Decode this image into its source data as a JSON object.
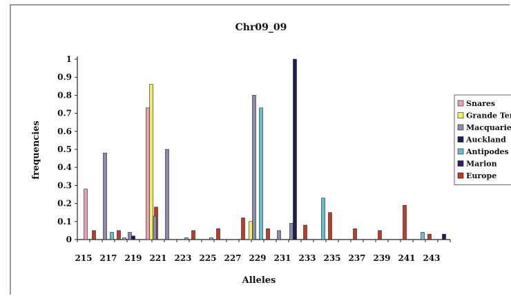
{
  "chart_data": {
    "type": "bar",
    "title": "Chr09_09",
    "xlabel": "Alleles",
    "ylabel": "frequencies",
    "ylim": [
      0,
      1
    ],
    "yticks": [
      "0",
      "0.1",
      "0.2",
      "0.3",
      "0.4",
      "0.5",
      "0.6",
      "0.7",
      "0.8",
      "0.9",
      "1"
    ],
    "categories": [
      "215",
      "216",
      "217",
      "218",
      "219",
      "220",
      "221",
      "222",
      "223",
      "224",
      "225",
      "226",
      "227",
      "228",
      "229",
      "230",
      "231",
      "232",
      "233",
      "234",
      "235",
      "236",
      "237",
      "238",
      "239",
      "240",
      "241",
      "242",
      "243",
      "244"
    ],
    "xtick_labels": [
      "215",
      "217",
      "219",
      "221",
      "223",
      "225",
      "227",
      "229",
      "231",
      "233",
      "235",
      "237",
      "239",
      "241",
      "243"
    ],
    "legend_position": "right",
    "series": [
      {
        "name": "Snares",
        "color": "#e8a0b0",
        "values": [
          0,
          0.28,
          0,
          0,
          0,
          0,
          0.73,
          0,
          0,
          0,
          0,
          0,
          0,
          0,
          0,
          0,
          0,
          0,
          0,
          0,
          0,
          0,
          0,
          0,
          0,
          0,
          0,
          0,
          0,
          0
        ]
      },
      {
        "name": "Grande Terre",
        "color": "#eeee60",
        "values": [
          0,
          0,
          0,
          0,
          0,
          0,
          0.86,
          0,
          0,
          0,
          0,
          0,
          0,
          0,
          0.1,
          0,
          0,
          0,
          0,
          0,
          0,
          0,
          0,
          0,
          0,
          0,
          0,
          0,
          0,
          0
        ]
      },
      {
        "name": "Macquarie",
        "color": "#8a8aaa",
        "values": [
          0,
          0,
          0.48,
          0,
          0.04,
          0,
          0.13,
          0.5,
          0,
          0,
          0,
          0,
          0,
          0,
          0.8,
          0,
          0.05,
          0.09,
          0,
          0,
          0,
          0,
          0,
          0,
          0,
          0,
          0,
          0,
          0,
          0
        ]
      },
      {
        "name": "Auckland",
        "color": "#1c1c5a",
        "values": [
          0,
          0,
          0,
          0,
          0.02,
          0,
          0,
          0,
          0,
          0,
          0,
          0,
          0,
          0,
          0,
          0,
          0,
          1.0,
          0,
          0,
          0,
          0,
          0,
          0,
          0,
          0,
          0,
          0,
          0,
          0.03
        ]
      },
      {
        "name": "Antipodes",
        "color": "#60c0d0",
        "values": [
          0,
          0,
          0.04,
          0.01,
          0,
          0,
          0,
          0,
          0.01,
          0,
          0.01,
          0,
          0,
          0,
          0.73,
          0,
          0,
          0,
          0,
          0.23,
          0,
          0,
          0,
          0,
          0,
          0,
          0,
          0.04,
          0,
          0
        ]
      },
      {
        "name": "Marion",
        "color": "#222266",
        "values": [
          0,
          0,
          0,
          0,
          0,
          0,
          0,
          0,
          0,
          0,
          0,
          0,
          0,
          0,
          0,
          0,
          0,
          0,
          0,
          0,
          0,
          0,
          0,
          0,
          0,
          0,
          0,
          0,
          0,
          0
        ]
      },
      {
        "name": "Europe",
        "color": "#c03a28",
        "values": [
          0.05,
          0,
          0.05,
          0,
          0,
          0.18,
          0,
          0,
          0.05,
          0,
          0.06,
          0,
          0.12,
          0,
          0.06,
          0,
          0,
          0.08,
          0,
          0.15,
          0,
          0.06,
          0,
          0.05,
          0,
          0.19,
          0,
          0.03,
          0,
          0
        ]
      }
    ]
  }
}
